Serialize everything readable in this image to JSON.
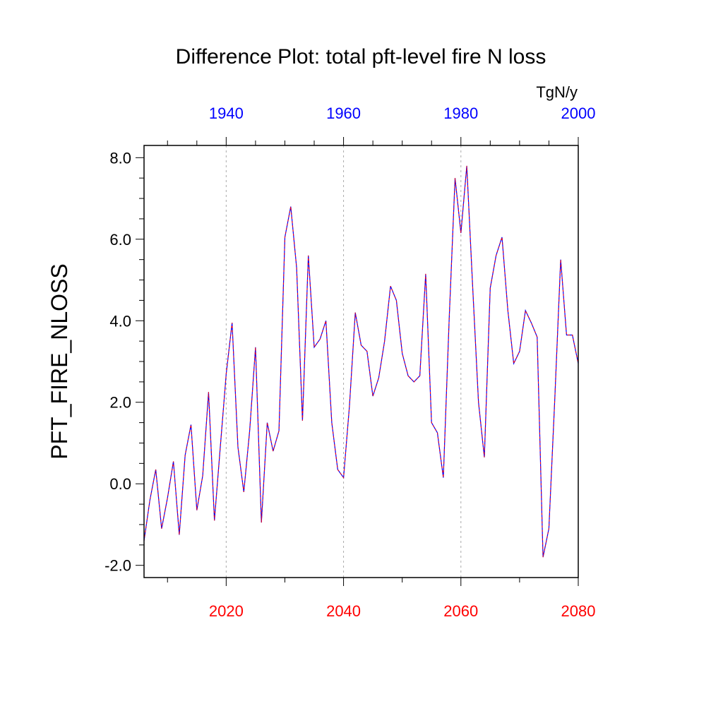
{
  "chart_data": {
    "type": "line",
    "title": "Difference Plot: total pft-level fire N loss",
    "ylabel": "PFT_FIRE_NLOSS",
    "units": "TgN/y",
    "ylim": [
      -2.3,
      8.3
    ],
    "yticks": [
      -2.0,
      0.0,
      2.0,
      4.0,
      6.0,
      8.0
    ],
    "ytick_labels": [
      "-2.0",
      "0.0",
      "2.0",
      "4.0",
      "6.0",
      "8.0"
    ],
    "bottom_axis": {
      "color": "#ff0000",
      "range": [
        2006,
        2080
      ],
      "ticks": [
        2020,
        2040,
        2060,
        2080
      ],
      "tick_labels": [
        "2020",
        "2040",
        "2060",
        "2080"
      ]
    },
    "top_axis": {
      "color": "#0000ff",
      "range": [
        1926,
        2000
      ],
      "ticks": [
        1940,
        1960,
        1980,
        2000
      ],
      "tick_labels": [
        "1940",
        "1960",
        "1980",
        "2000"
      ]
    },
    "grid": "vertical dashed at bottom-axis major ticks",
    "series": [
      {
        "color": "#0000ff",
        "dashed_overlay_color": "#ff0000",
        "x": [
          2006,
          2007,
          2008,
          2009,
          2010,
          2011,
          2012,
          2013,
          2014,
          2015,
          2016,
          2017,
          2018,
          2019,
          2020,
          2021,
          2022,
          2023,
          2024,
          2025,
          2026,
          2027,
          2028,
          2029,
          2030,
          2031,
          2032,
          2033,
          2034,
          2035,
          2036,
          2037,
          2038,
          2039,
          2040,
          2041,
          2042,
          2043,
          2044,
          2045,
          2046,
          2047,
          2048,
          2049,
          2050,
          2051,
          2052,
          2053,
          2054,
          2055,
          2056,
          2057,
          2058,
          2059,
          2060,
          2061,
          2062,
          2063,
          2064,
          2065,
          2066,
          2067,
          2068,
          2069,
          2070,
          2071,
          2072,
          2073,
          2074,
          2075,
          2076,
          2077,
          2078,
          2079,
          2080
        ],
        "values": [
          -1.4,
          -0.4,
          0.35,
          -1.1,
          -0.35,
          0.55,
          -1.25,
          0.7,
          1.45,
          -0.65,
          0.2,
          2.25,
          -0.9,
          0.9,
          2.7,
          3.95,
          0.9,
          -0.2,
          1.3,
          3.35,
          -0.95,
          1.5,
          0.8,
          1.3,
          6.05,
          6.8,
          5.3,
          1.55,
          5.6,
          3.35,
          3.55,
          4.0,
          1.5,
          0.35,
          0.15,
          1.9,
          4.2,
          3.4,
          3.25,
          2.15,
          2.6,
          3.5,
          4.85,
          4.5,
          3.2,
          2.65,
          2.5,
          2.65,
          5.15,
          1.5,
          1.25,
          0.15,
          4.05,
          7.5,
          6.15,
          7.8,
          4.85,
          2.0,
          0.65,
          4.8,
          5.6,
          6.05,
          4.25,
          2.95,
          3.25,
          4.25,
          3.95,
          3.6,
          -1.8,
          -1.1,
          2.1,
          5.5,
          3.65,
          3.65,
          2.95
        ]
      }
    ]
  }
}
